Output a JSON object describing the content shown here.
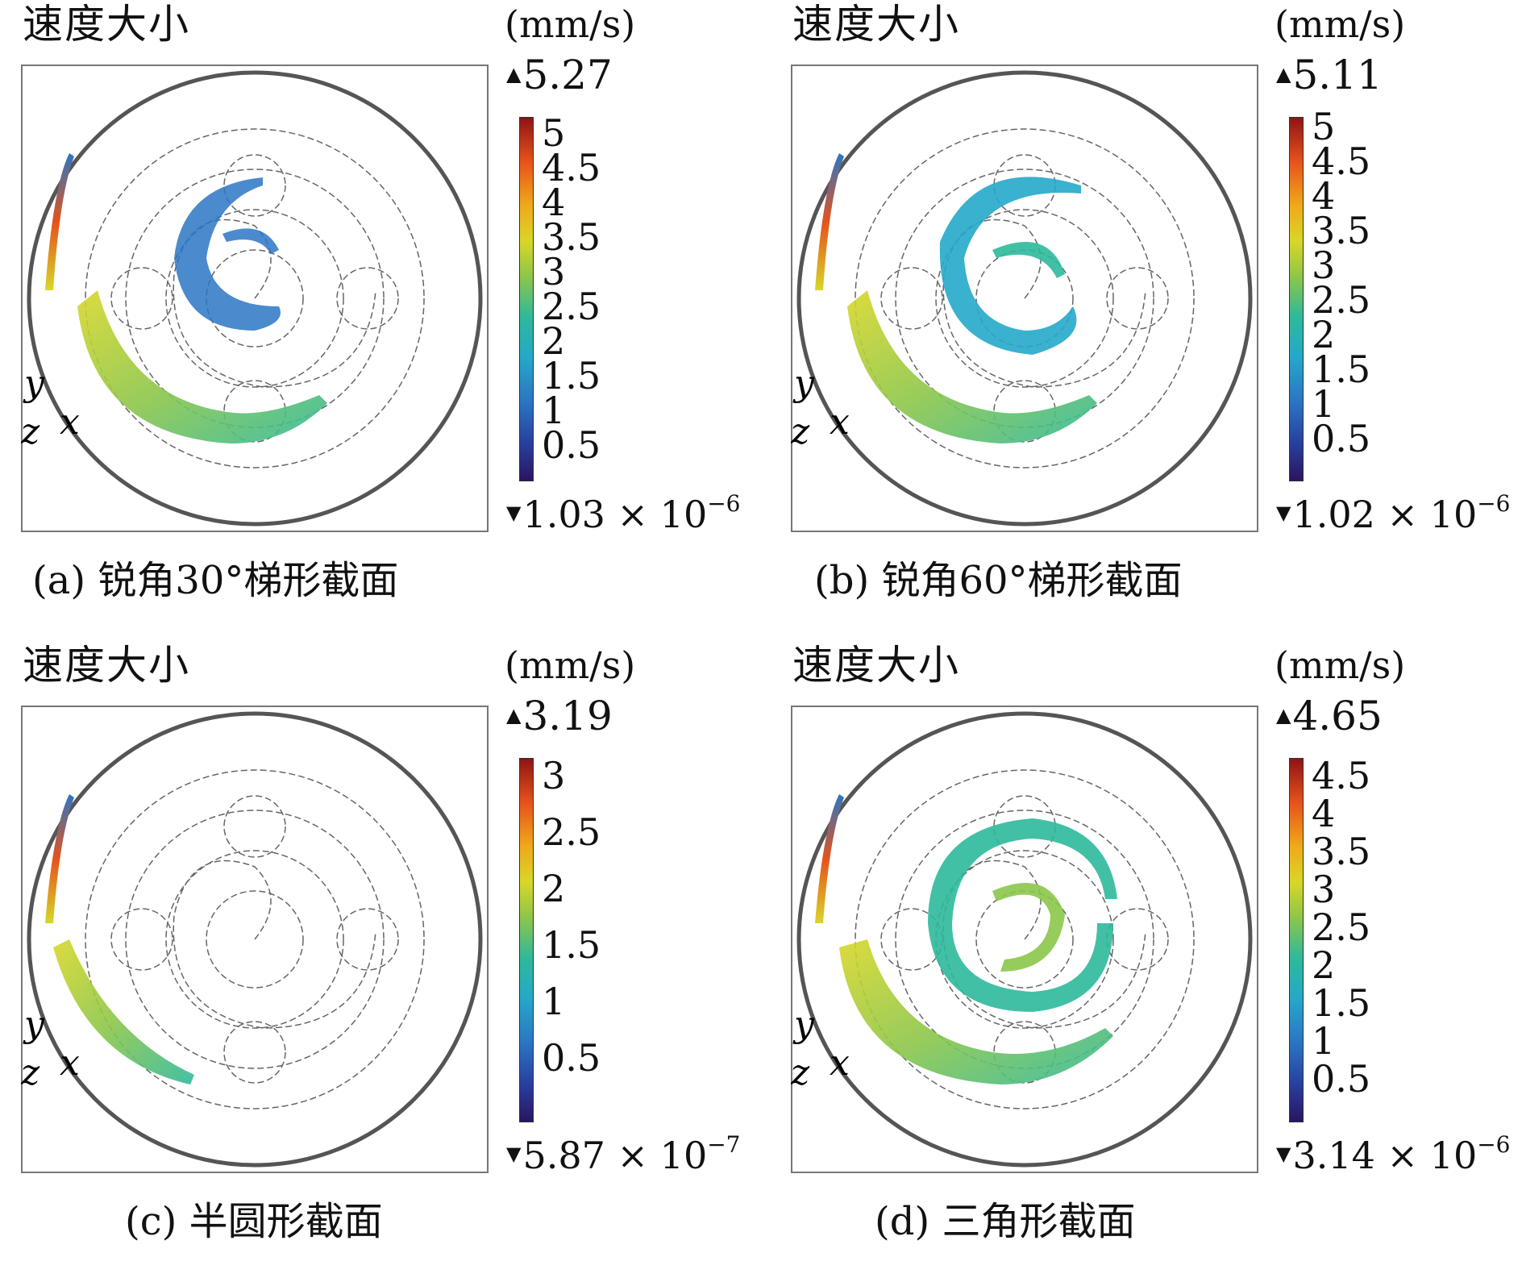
{
  "panels": [
    {
      "quantity": "速度大小",
      "unit": "(mm/s)",
      "max": "5.27",
      "min_mantissa": "1.03 × 10",
      "min_exp": "−6",
      "ticks": [
        "5",
        "4.5",
        "4",
        "3.5",
        "3",
        "2.5",
        "2",
        "1.5",
        "1",
        "0.5"
      ],
      "axis": {
        "y": "y",
        "z": "z",
        "x": "x"
      },
      "caption": "(a) 锐角30°梯形截面"
    },
    {
      "quantity": "速度大小",
      "unit": "(mm/s)",
      "max": "5.11",
      "min_mantissa": "1.02 × 10",
      "min_exp": "−6",
      "ticks": [
        "5",
        "4.5",
        "4",
        "3.5",
        "3",
        "2.5",
        "2",
        "1.5",
        "1",
        "0.5"
      ],
      "axis": {
        "y": "y",
        "z": "z",
        "x": "x"
      },
      "caption": "(b) 锐角60°梯形截面"
    },
    {
      "quantity": "速度大小",
      "unit": "(mm/s)",
      "max": "3.19",
      "min_mantissa": "5.87 × 10",
      "min_exp": "−7",
      "ticks": [
        "3",
        "2.5",
        "2",
        "1.5",
        "1",
        "0.5"
      ],
      "axis": {
        "y": "y",
        "z": "z",
        "x": "x"
      },
      "caption": "(c) 半圆形截面"
    },
    {
      "quantity": "速度大小",
      "unit": "(mm/s)",
      "max": "4.65",
      "min_mantissa": "3.14 × 10",
      "min_exp": "−6",
      "ticks": [
        "4.5",
        "4",
        "3.5",
        "3",
        "2.5",
        "2",
        "1.5",
        "1",
        "0.5"
      ],
      "axis": {
        "y": "y",
        "z": "z",
        "x": "x"
      },
      "caption": "(d) 三角形截面"
    }
  ],
  "colormap": [
    "#2a1560",
    "#283e9e",
    "#2b76c4",
    "#25a8c9",
    "#2eb99b",
    "#8bc64a",
    "#d8d728",
    "#f0a81a",
    "#e6521b",
    "#8e1414"
  ]
}
